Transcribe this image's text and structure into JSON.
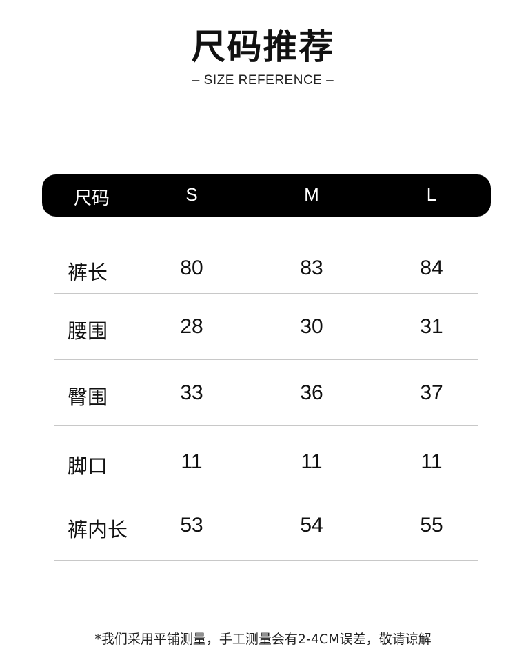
{
  "title": "尺码推荐",
  "subtitle": "– SIZE REFERENCE –",
  "table": {
    "header": [
      "尺码",
      "S",
      "M",
      "L"
    ],
    "rows": [
      {
        "label": "裤长",
        "values": [
          "80",
          "83",
          "84"
        ]
      },
      {
        "label": "腰围",
        "values": [
          "28",
          "30",
          "31"
        ]
      },
      {
        "label": "臀围",
        "values": [
          "33",
          "36",
          "37"
        ]
      },
      {
        "label": "脚口",
        "values": [
          "11",
          "11",
          "11"
        ]
      },
      {
        "label": "裤内长",
        "values": [
          "53",
          "54",
          "55"
        ]
      }
    ]
  },
  "note": "*我们采用平铺测量，手工测量会有2-4CM误差，敬请谅解",
  "colors": {
    "header_bg": "#000000",
    "header_text": "#ffffff",
    "divider": "#c8c8c8"
  }
}
